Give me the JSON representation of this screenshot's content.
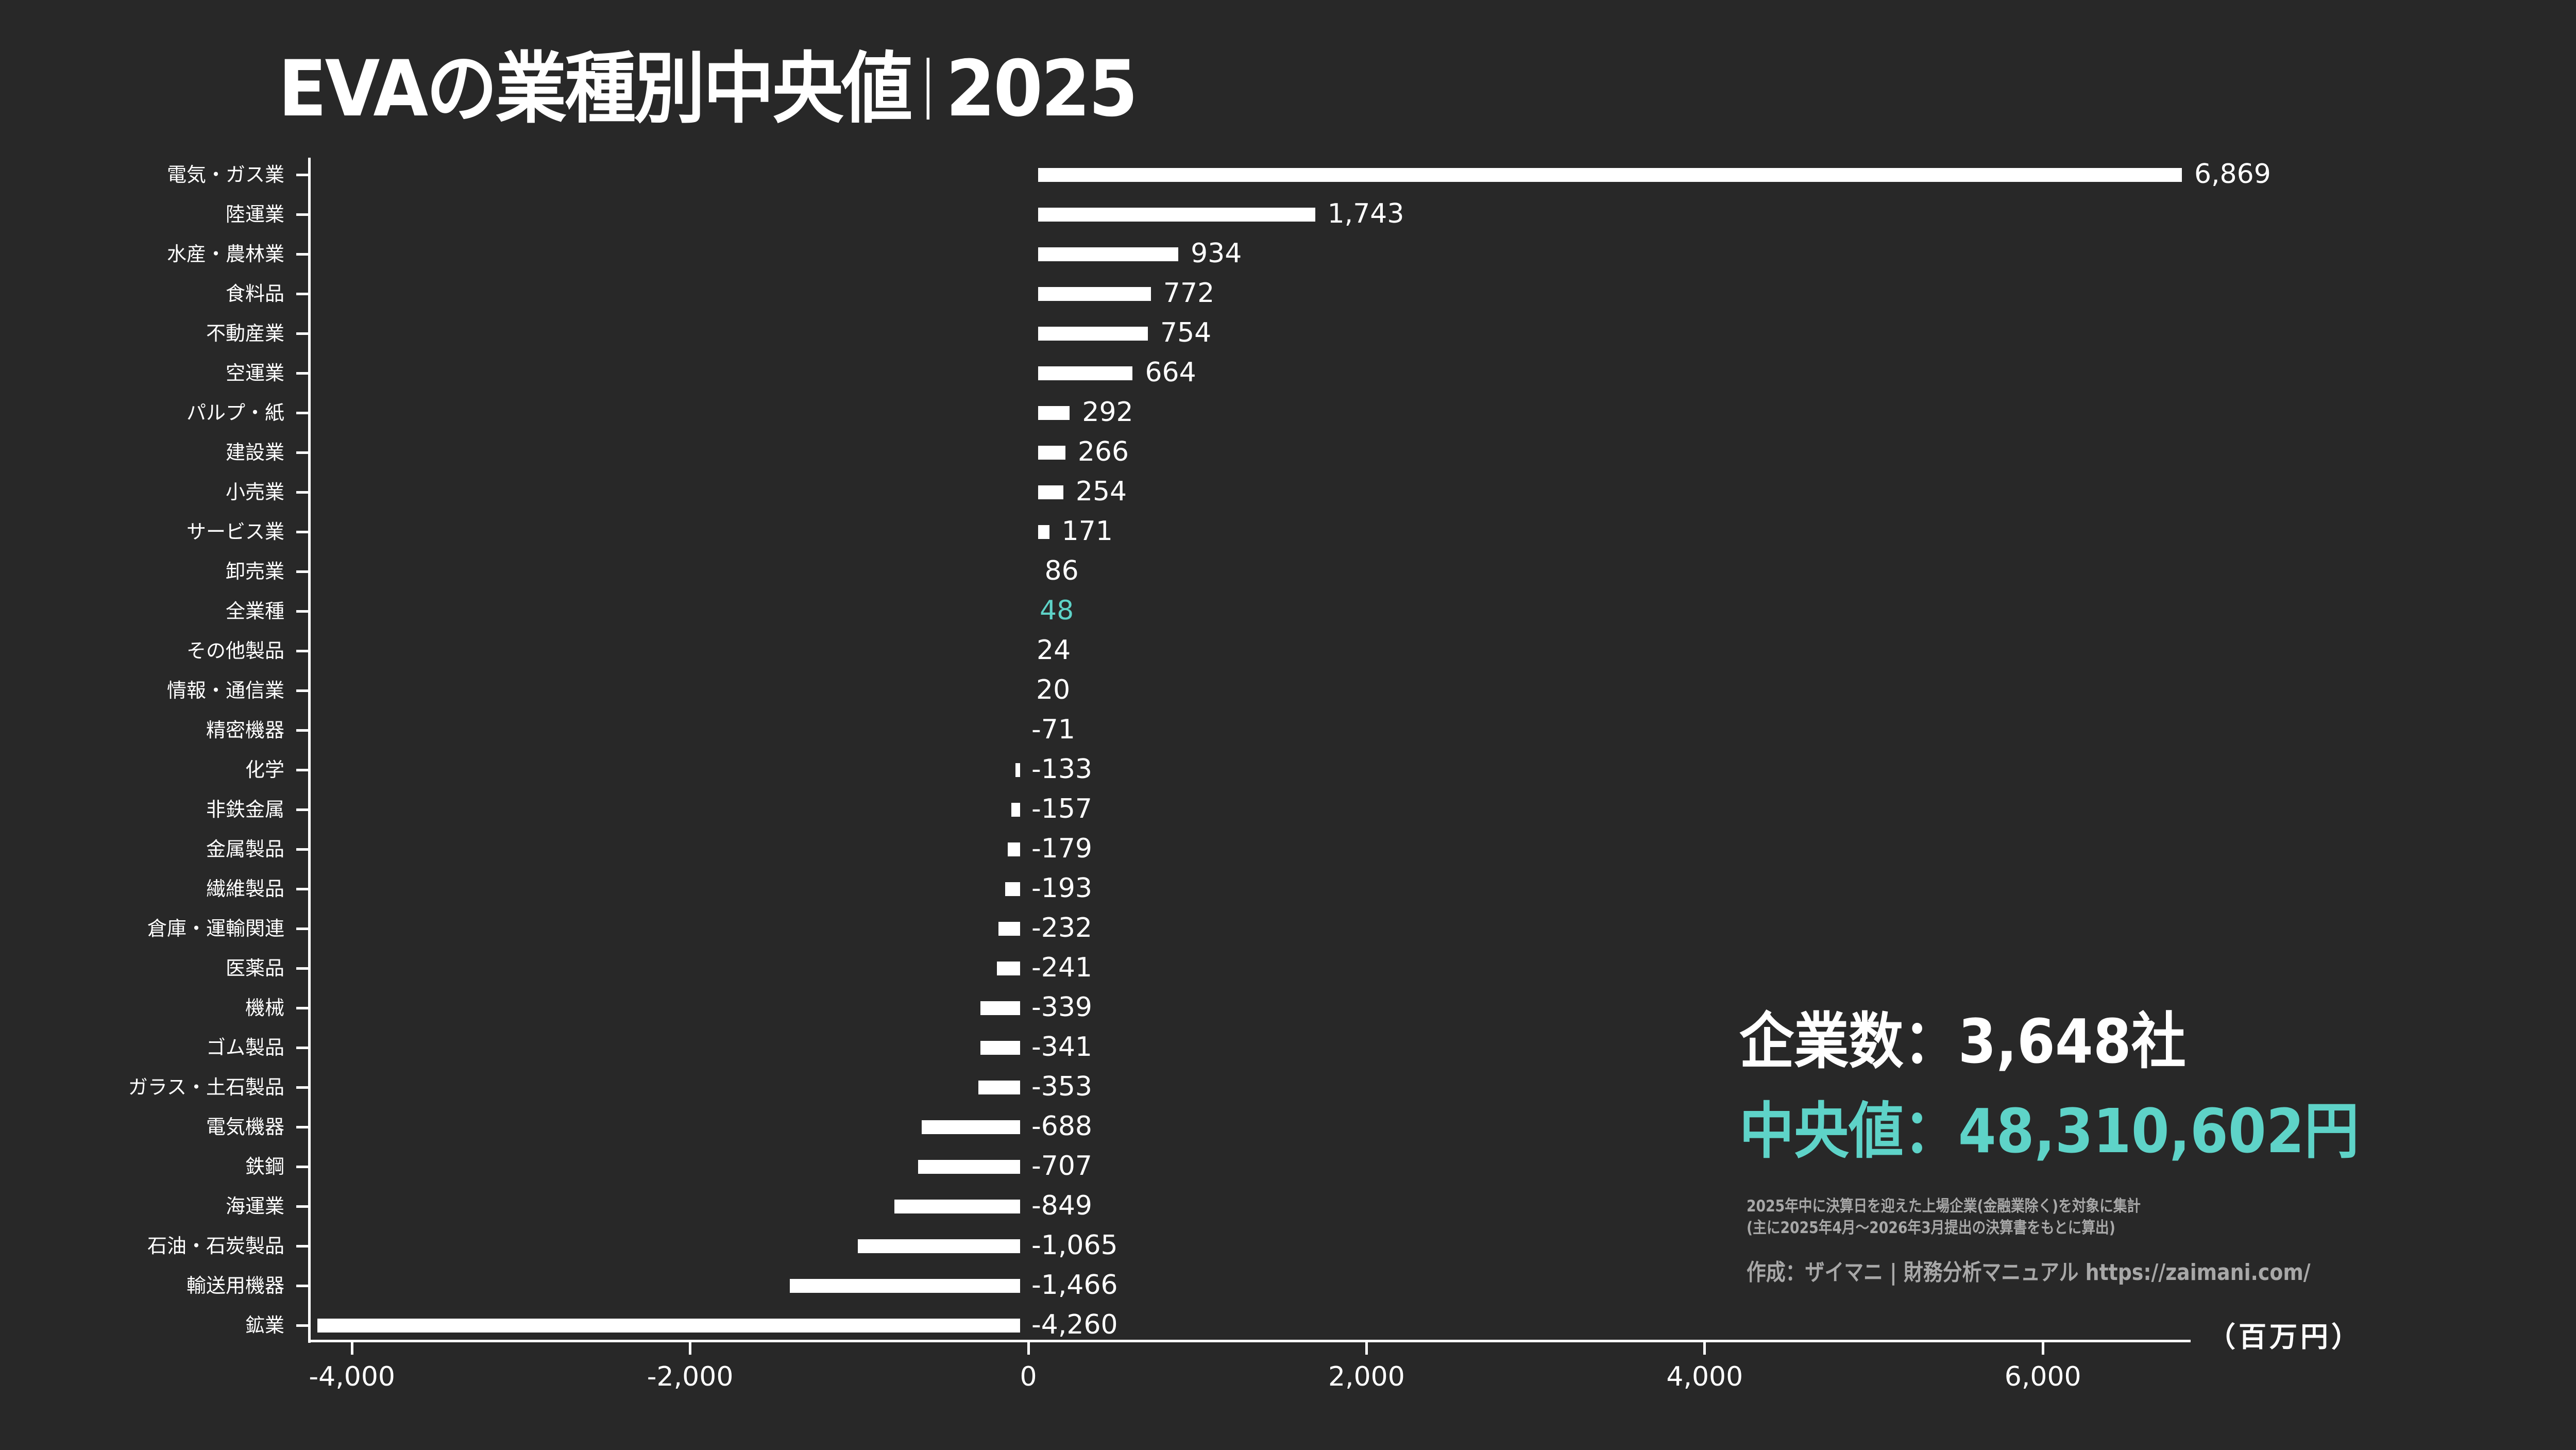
{
  "header": {
    "title_main": "EVAの業種別中央値",
    "title_year": "2025"
  },
  "colors": {
    "background": "#282828",
    "bar": "#ffffff",
    "text": "#ffffff",
    "highlight": "#5ED3C8",
    "note": "#a8a8a8"
  },
  "chart_data": {
    "type": "bar",
    "orientation": "horizontal",
    "title": "EVAの業種別中央値｜2025",
    "xlabel": "（百万円）",
    "ylabel": "",
    "xlim": [
      -4260,
      6869
    ],
    "xticks": [
      -4000,
      -2000,
      0,
      2000,
      4000,
      6000
    ],
    "xtick_labels": [
      "-4,000",
      "-2,000",
      "0",
      "2,000",
      "4,000",
      "6,000"
    ],
    "grid": false,
    "highlight_category": "全業種",
    "categories": [
      "電気・ガス業",
      "陸運業",
      "水産・農林業",
      "食料品",
      "不動産業",
      "空運業",
      "パルプ・紙",
      "建設業",
      "小売業",
      "サービス業",
      "卸売業",
      "全業種",
      "その他製品",
      "情報・通信業",
      "精密機器",
      "化学",
      "非鉄金属",
      "金属製品",
      "繊維製品",
      "倉庫・運輸関連",
      "医薬品",
      "機械",
      "ゴム製品",
      "ガラス・土石製品",
      "電気機器",
      "鉄鋼",
      "海運業",
      "石油・石炭製品",
      "輸送用機器",
      "鉱業"
    ],
    "values": [
      6869,
      1743,
      934,
      772,
      754,
      664,
      292,
      266,
      254,
      171,
      86,
      48,
      24,
      20,
      -71,
      -133,
      -157,
      -179,
      -193,
      -232,
      -241,
      -339,
      -341,
      -353,
      -688,
      -707,
      -849,
      -1065,
      -1466,
      -4260
    ],
    "value_labels": [
      "6,869",
      "1,743",
      "934",
      "772",
      "754",
      "664",
      "292",
      "266",
      "254",
      "171",
      "86",
      "48",
      "24",
      "20",
      "-71",
      "-133",
      "-157",
      "-179",
      "-193",
      "-232",
      "-241",
      "-339",
      "-341",
      "-353",
      "-688",
      "-707",
      "-849",
      "-1,065",
      "-1,466",
      "-4,260"
    ]
  },
  "summary": {
    "company_count_label": "企業数：3,648社",
    "median_label": "中央値：48,310,602円"
  },
  "notes": {
    "line1": "2025年中に決算日を迎えた上場企業(金融業除く)を対象に集計",
    "line2": "(主に2025年4月～2026年3月提出の決算書をもとに算出)",
    "credit": "作成：ザイマニ | 財務分析マニュアル https://zaimani.com/"
  },
  "axis": {
    "unit_label": "（百万円）"
  }
}
